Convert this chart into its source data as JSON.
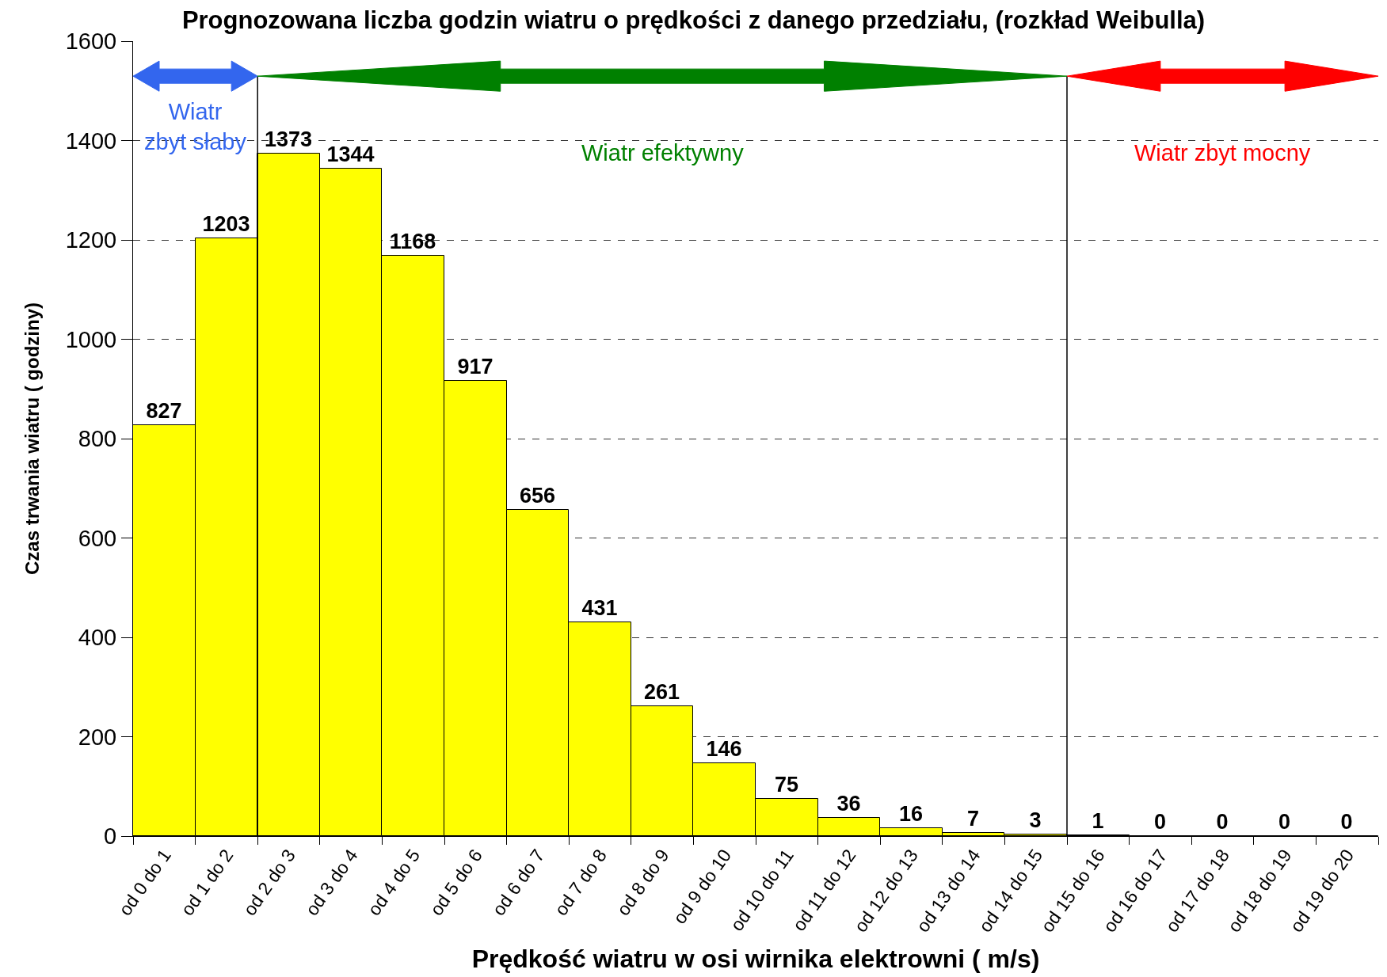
{
  "chart_data": {
    "type": "bar",
    "title": "Prognozowana liczba godzin wiatru o prędkości z danego przedziału, (rozkład Weibulla)",
    "xlabel": "Prędkość wiatru w osi wirnika elektrowni ( m/s)",
    "ylabel": "Czas trwania wiatru ( godziny)",
    "categories": [
      "od 0 do 1",
      "od 1 do 2",
      "od 2 do 3",
      "od 3 do 4",
      "od 4 do 5",
      "od 5 do 6",
      "od 6 do 7",
      "od 7 do 8",
      "od 8 do 9",
      "od 9 do 10",
      "od 10 do 11",
      "od 11 do 12",
      "od 12 do 13",
      "od 13 do 14",
      "od 14 do 15",
      "od 15 do 16",
      "od 16 do 17",
      "od 17 do 18",
      "od 18 do 19",
      "od 19 do 20"
    ],
    "values": [
      827,
      1203,
      1373,
      1344,
      1168,
      917,
      656,
      431,
      261,
      146,
      75,
      36,
      16,
      7,
      3,
      1,
      0,
      0,
      0,
      0
    ],
    "color": "#ffff00",
    "data_labels": true,
    "ylim": [
      0,
      1600
    ],
    "yticks": [
      0,
      200,
      400,
      600,
      800,
      1000,
      1200,
      1400,
      1600
    ],
    "grid": "y",
    "annotations": [
      "Wiatr zbyt słaby",
      "Wiatr efektywny",
      "Wiatr zbyt mocny"
    ]
  }
}
